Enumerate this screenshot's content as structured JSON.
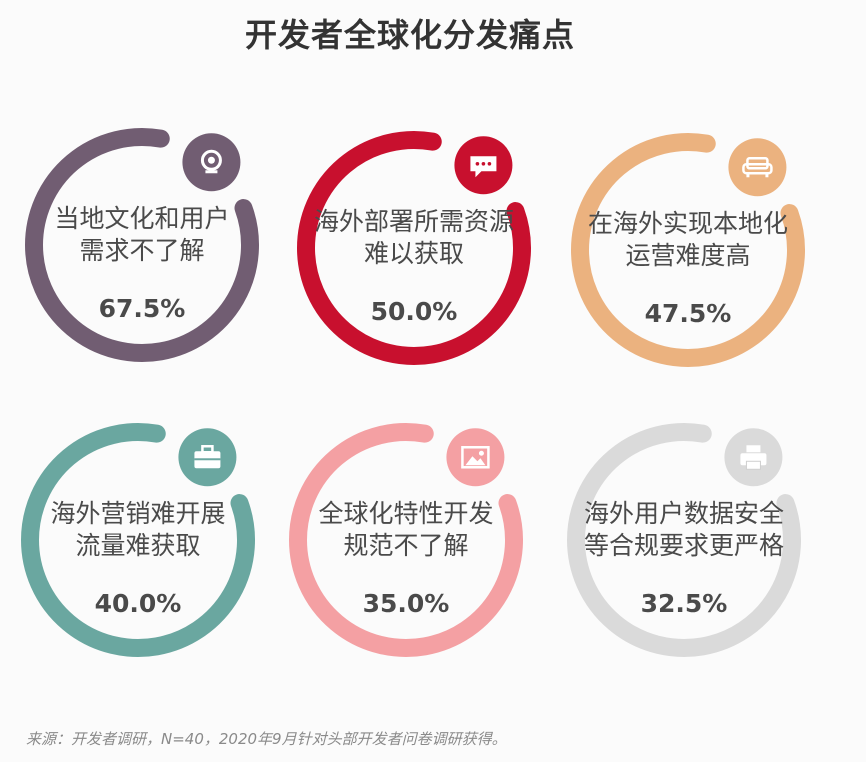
{
  "title": "开发者全球化分发痛点",
  "source": "来源：开发者调研，N=40，2020年9月针对头部开发者问卷调研获得。",
  "chart_data": {
    "type": "pie",
    "title": "开发者全球化分发痛点",
    "unit": "%",
    "items": [
      {
        "label_lines": [
          "当地文化和用户",
          "需求不了解"
        ],
        "value": 67.5,
        "value_text": "67.5%",
        "color": "#715d72",
        "icon": "webcam-icon"
      },
      {
        "label_lines": [
          "海外部署所需资源",
          "难以获取"
        ],
        "value": 50.0,
        "value_text": "50.0%",
        "color": "#c8102e",
        "icon": "chat-bubble-icon"
      },
      {
        "label_lines": [
          "在海外实现本地化",
          "运营难度高"
        ],
        "value": 47.5,
        "value_text": "47.5%",
        "color": "#ebb27f",
        "icon": "sofa-icon"
      },
      {
        "label_lines": [
          "海外营销难开展",
          "流量难获取"
        ],
        "value": 40.0,
        "value_text": "40.0%",
        "color": "#6aa7a0",
        "icon": "toolbox-icon"
      },
      {
        "label_lines": [
          "全球化特性开发",
          "规范不了解"
        ],
        "value": 35.0,
        "value_text": "35.0%",
        "color": "#f4a0a3",
        "icon": "image-icon"
      },
      {
        "label_lines": [
          "海外用户数据安全",
          "等合规要求更严格"
        ],
        "value": 32.5,
        "value_text": "32.5%",
        "color": "#dadada",
        "icon": "printer-icon"
      }
    ]
  }
}
